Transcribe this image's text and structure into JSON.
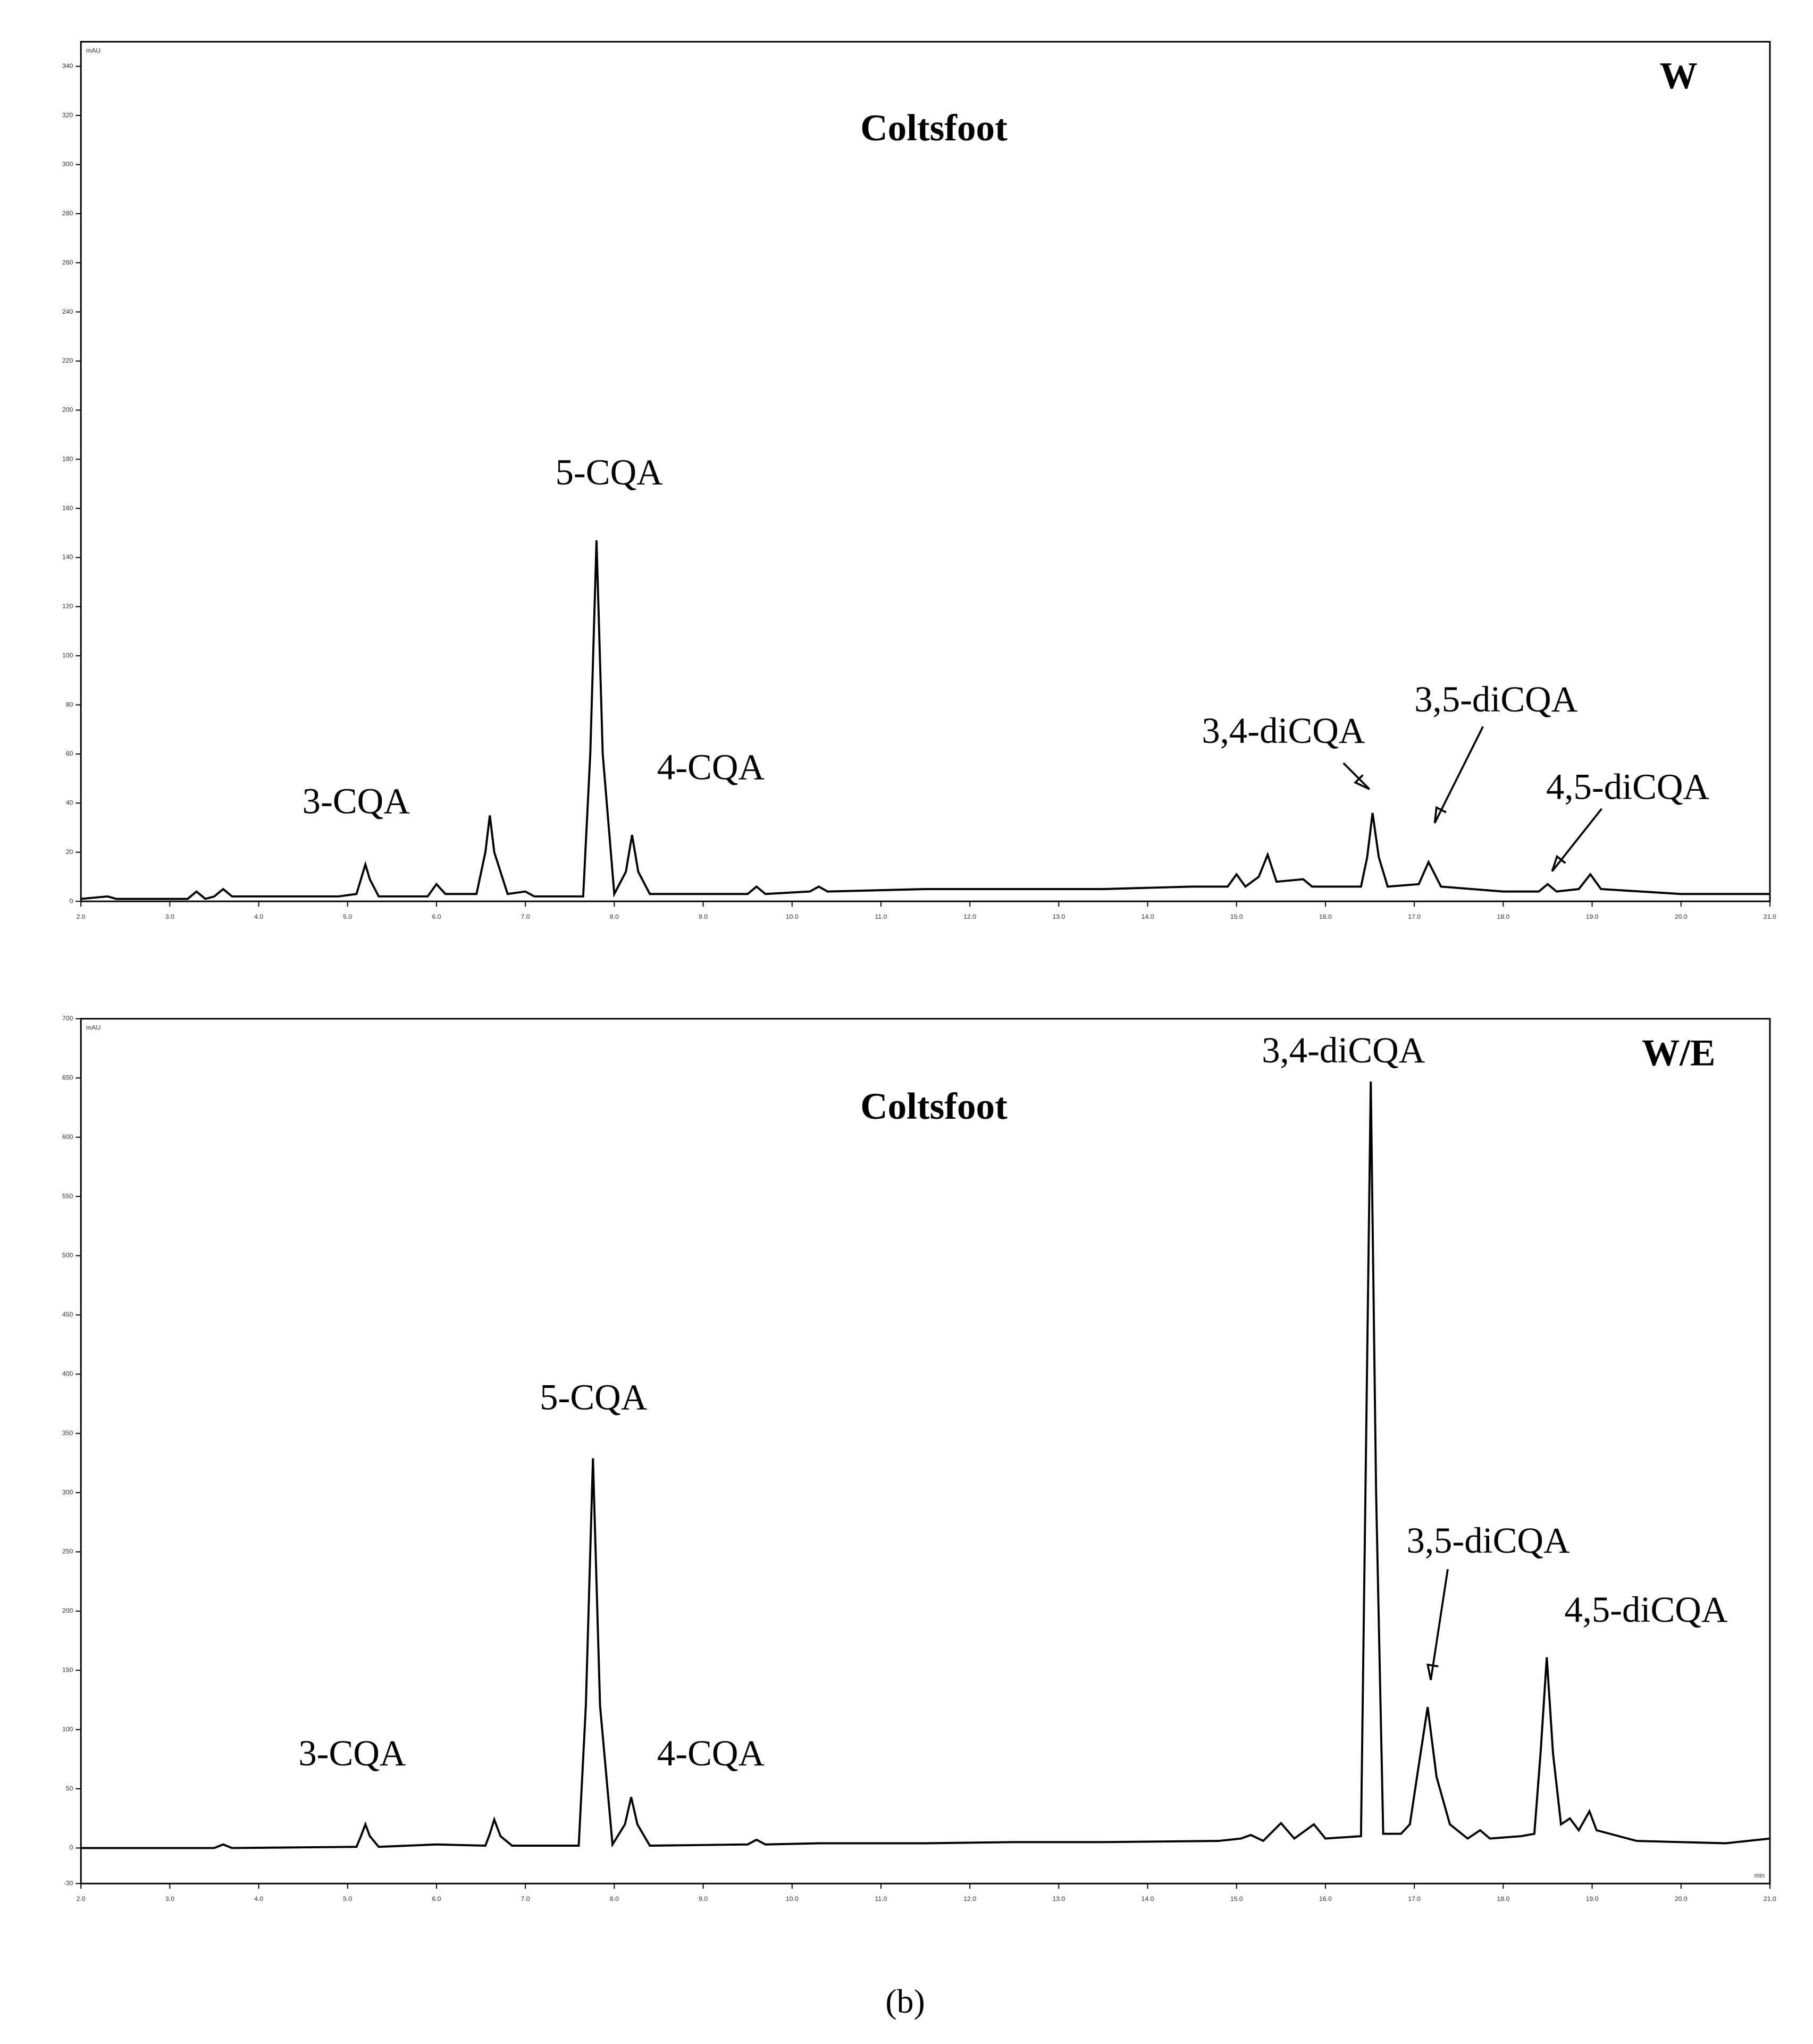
{
  "chart_data": [
    {
      "type": "line",
      "title": "Coltsfoot",
      "corner_label": "W",
      "y_label": "mAU",
      "x": [
        2.0,
        2.3,
        2.4,
        3.2,
        3.3,
        3.4,
        3.5,
        3.6,
        3.7,
        4.9,
        5.1,
        5.15,
        5.2,
        5.25,
        5.35,
        5.9,
        6.0,
        6.1,
        6.45,
        6.55,
        6.6,
        6.65,
        6.8,
        7.0,
        7.1,
        7.65,
        7.73,
        7.8,
        7.87,
        8.0,
        8.13,
        8.2,
        8.27,
        8.4,
        9.5,
        9.6,
        9.7,
        10.2,
        10.3,
        10.4,
        11.5,
        12.5,
        13.5,
        14.5,
        14.9,
        15.0,
        15.1,
        15.25,
        15.35,
        15.45,
        15.75,
        15.85,
        16.4,
        16.47,
        16.53,
        16.6,
        16.7,
        17.05,
        17.16,
        17.3,
        18.0,
        18.4,
        18.5,
        18.6,
        18.85,
        18.98,
        19.1,
        20.0,
        21.0
      ],
      "series": [
        {
          "color": "#000000",
          "values": [
            1,
            2,
            1,
            1,
            4,
            1,
            2,
            5,
            2,
            2,
            3,
            9,
            15,
            9,
            2,
            2,
            7,
            3,
            3,
            20,
            35,
            20,
            3,
            4,
            2,
            2,
            60,
            147,
            60,
            3,
            12,
            27,
            12,
            3,
            3,
            6,
            3,
            4,
            6,
            4,
            5,
            5,
            5,
            6,
            6,
            11,
            6,
            10,
            19,
            8,
            9,
            6,
            6,
            18,
            36,
            18,
            6,
            7,
            16,
            6,
            4,
            4,
            7,
            4,
            5,
            11,
            5,
            3,
            3
          ]
        }
      ],
      "annotations": [
        "3-CQA",
        "5-CQA",
        "4-CQA",
        "3,4-diCQA",
        "3,5-diCQA",
        "4,5-diCQA"
      ],
      "xlim": [
        2,
        21
      ],
      "xticks": [
        {
          "value": 2,
          "label": "2.0"
        },
        {
          "value": 3,
          "label": "3.0"
        },
        {
          "value": 4,
          "label": "4.0"
        },
        {
          "value": 5,
          "label": "5.0"
        },
        {
          "value": 6,
          "label": "6.0"
        },
        {
          "value": 7,
          "label": "7.0"
        },
        {
          "value": 8,
          "label": "8.0"
        },
        {
          "value": 9,
          "label": "9.0"
        },
        {
          "value": 10,
          "label": "10.0"
        },
        {
          "value": 11,
          "label": "11.0"
        },
        {
          "value": 12,
          "label": "12.0"
        },
        {
          "value": 13,
          "label": "13.0"
        },
        {
          "value": 14,
          "label": "14.0"
        },
        {
          "value": 15,
          "label": "15.0"
        },
        {
          "value": 16,
          "label": "16.0"
        },
        {
          "value": 17,
          "label": "17.0"
        },
        {
          "value": 18,
          "label": "18.0"
        },
        {
          "value": 19,
          "label": "19.0"
        },
        {
          "value": 20,
          "label": "20.0"
        },
        {
          "value": 21,
          "label": "21.0"
        }
      ],
      "ylim": [
        0,
        350
      ],
      "yticks": [
        0,
        20,
        40,
        60,
        80,
        100,
        120,
        140,
        160,
        180,
        200,
        220,
        240,
        260,
        280,
        300,
        320,
        340
      ]
    },
    {
      "type": "line",
      "title": "Coltsfoot",
      "corner_label": "W/E",
      "y_label": "mAU",
      "x_label": "min",
      "x": [
        2.0,
        3.5,
        3.6,
        3.7,
        5.1,
        5.15,
        5.2,
        5.25,
        5.35,
        6.0,
        6.55,
        6.6,
        6.65,
        6.72,
        6.85,
        7.6,
        7.68,
        7.76,
        7.84,
        7.98,
        8.12,
        8.19,
        8.26,
        8.4,
        9.5,
        9.6,
        9.7,
        10.3,
        11.5,
        12.5,
        13.5,
        14.8,
        15.05,
        15.16,
        15.3,
        15.5,
        15.65,
        15.87,
        16.0,
        16.4,
        16.45,
        16.51,
        16.57,
        16.65,
        16.85,
        16.95,
        17.05,
        17.15,
        17.25,
        17.4,
        17.6,
        17.74,
        17.85,
        18.2,
        18.35,
        18.42,
        18.49,
        18.56,
        18.65,
        18.75,
        18.85,
        18.97,
        19.05,
        19.3,
        19.5,
        20.5,
        21.0
      ],
      "series": [
        {
          "color": "#000000",
          "values": [
            0,
            0,
            3,
            0,
            1,
            10,
            20,
            10,
            1,
            3,
            2,
            12,
            24,
            10,
            2,
            2,
            120,
            329,
            120,
            3,
            20,
            43,
            20,
            2,
            3,
            7,
            3,
            4,
            4,
            5,
            5,
            6,
            8,
            11,
            6,
            21,
            8,
            20,
            8,
            10,
            300,
            647,
            300,
            12,
            12,
            20,
            70,
            119,
            60,
            20,
            8,
            15,
            8,
            10,
            12,
            80,
            161,
            80,
            20,
            25,
            15,
            31,
            15,
            10,
            6,
            4,
            8
          ]
        }
      ],
      "annotations": [
        "3-CQA",
        "5-CQA",
        "4-CQA",
        "3,4-diCQA",
        "3,5-diCQA",
        "4,5-diCQA"
      ],
      "xlim": [
        2,
        21
      ],
      "xticks": [
        {
          "value": 2,
          "label": "2.0"
        },
        {
          "value": 3,
          "label": "3.0"
        },
        {
          "value": 4,
          "label": "4.0"
        },
        {
          "value": 5,
          "label": "5.0"
        },
        {
          "value": 6,
          "label": "6.0"
        },
        {
          "value": 7,
          "label": "7.0"
        },
        {
          "value": 8,
          "label": "8.0"
        },
        {
          "value": 9,
          "label": "9.0"
        },
        {
          "value": 10,
          "label": "10.0"
        },
        {
          "value": 11,
          "label": "11.0"
        },
        {
          "value": 12,
          "label": "12.0"
        },
        {
          "value": 13,
          "label": "13.0"
        },
        {
          "value": 14,
          "label": "14.0"
        },
        {
          "value": 15,
          "label": "15.0"
        },
        {
          "value": 16,
          "label": "16.0"
        },
        {
          "value": 17,
          "label": "17.0"
        },
        {
          "value": 18,
          "label": "18.0"
        },
        {
          "value": 19,
          "label": "19.0"
        },
        {
          "value": 20,
          "label": "20.0"
        },
        {
          "value": 21,
          "label": "21.0"
        }
      ],
      "ylim": [
        -30,
        700
      ],
      "yticks": [
        -30,
        0,
        50,
        100,
        150,
        200,
        250,
        300,
        350,
        400,
        450,
        500,
        550,
        600,
        650,
        700
      ]
    }
  ],
  "figure_label": "(b)"
}
